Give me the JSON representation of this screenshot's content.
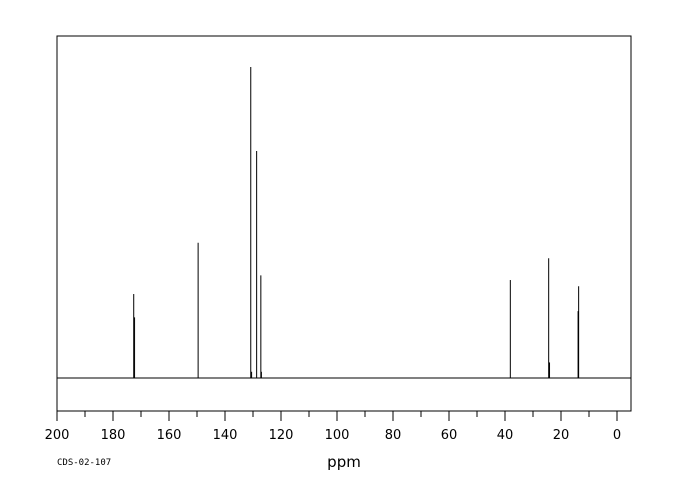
{
  "chart_data": {
    "type": "line",
    "title": "",
    "xlabel": "ppm",
    "ylabel": "",
    "xlim": [
      200,
      -5
    ],
    "x_reversed": true,
    "grid": false,
    "legend": "none",
    "code": "CDS-02-107",
    "xticks_major": [
      200,
      180,
      160,
      140,
      120,
      100,
      80,
      60,
      40,
      20,
      0
    ],
    "xtick_labels": [
      "200",
      "180",
      "160",
      "140",
      "120",
      "100",
      "80",
      "60",
      "40",
      "20",
      "0"
    ],
    "peaks": [
      {
        "ppm": 172.6,
        "intensity": 0.27
      },
      {
        "ppm": 172.3,
        "intensity": 0.195
      },
      {
        "ppm": 149.6,
        "intensity": 0.435
      },
      {
        "ppm": 130.8,
        "intensity": 1.0
      },
      {
        "ppm": 130.5,
        "intensity": 0.02
      },
      {
        "ppm": 128.7,
        "intensity": 0.73
      },
      {
        "ppm": 127.2,
        "intensity": 0.33
      },
      {
        "ppm": 127.0,
        "intensity": 0.02
      },
      {
        "ppm": 38.1,
        "intensity": 0.315
      },
      {
        "ppm": 24.4,
        "intensity": 0.385
      },
      {
        "ppm": 24.1,
        "intensity": 0.05
      },
      {
        "ppm": 13.7,
        "intensity": 0.295
      },
      {
        "ppm": 13.9,
        "intensity": 0.215
      }
    ]
  }
}
